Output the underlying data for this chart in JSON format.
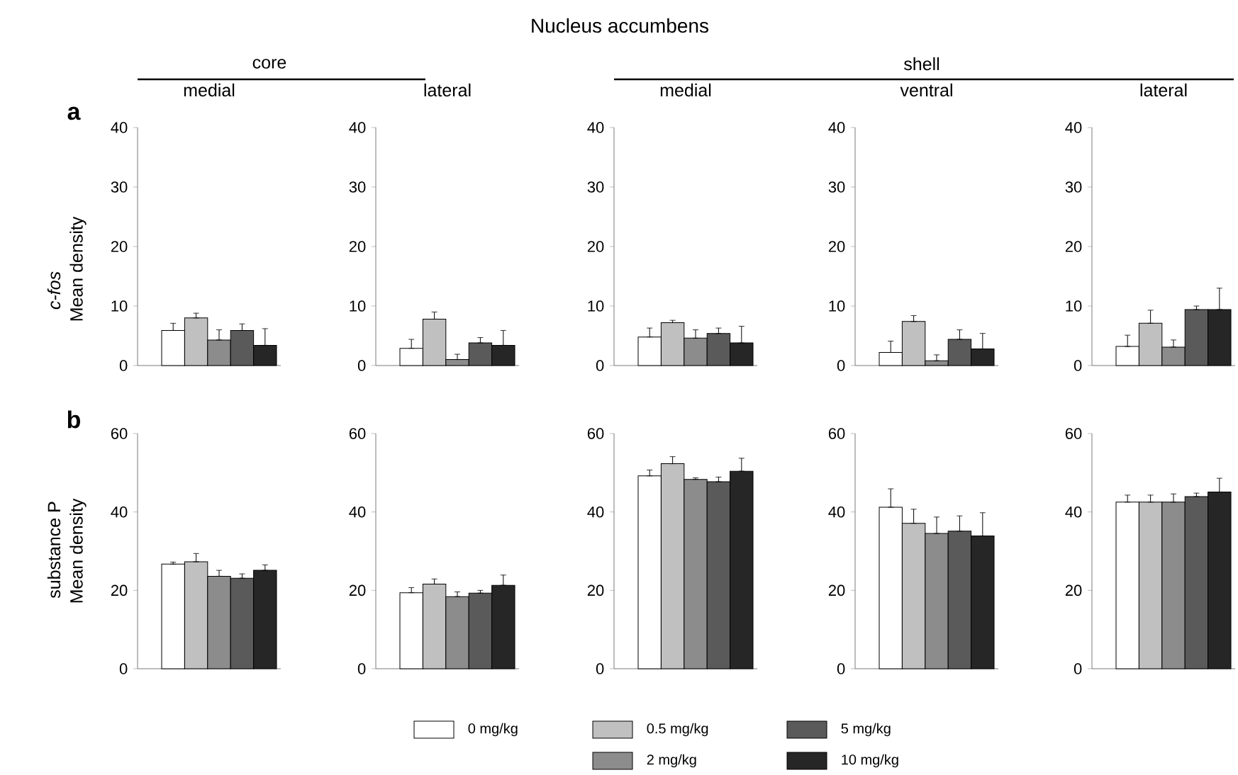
{
  "chart_data": [
    {
      "type": "bar",
      "title": "medial",
      "ylabel": "Mean density",
      "annotations": [
        "Nucleus accumbens",
        "core",
        "a",
        "c-fos"
      ],
      "categories": [
        null
      ],
      "ylim": [
        0,
        40
      ],
      "yticks": [
        0,
        10,
        20,
        30,
        40
      ],
      "legend": "bottom",
      "series": [
        {
          "name": "0 mg/kg",
          "color": "#ffffff",
          "values": [
            5.9
          ],
          "errors": [
            [
              5.9,
              7.1
            ]
          ]
        },
        {
          "name": "0.5 mg/kg",
          "color": "#c0c0c0",
          "values": [
            8.0
          ],
          "errors": [
            [
              8.0,
              8.8
            ]
          ]
        },
        {
          "name": "2 mg/kg",
          "color": "#8c8c8c",
          "values": [
            4.3
          ],
          "errors": [
            [
              4.3,
              6.0
            ]
          ]
        },
        {
          "name": "5 mg/kg",
          "color": "#5a5a5a",
          "values": [
            5.9
          ],
          "errors": [
            [
              5.9,
              7.0
            ]
          ]
        },
        {
          "name": "10 mg/kg",
          "color": "#262626",
          "values": [
            3.4
          ],
          "errors": [
            [
              3.4,
              6.2
            ]
          ]
        }
      ]
    },
    {
      "type": "bar",
      "title": "lateral",
      "categories": [
        null
      ],
      "ylim": [
        0,
        40
      ],
      "yticks": [
        0,
        10,
        20,
        30,
        40
      ],
      "series": [
        {
          "color": "#ffffff",
          "values": [
            2.9
          ],
          "errors": [
            [
              2.9,
              4.4
            ]
          ]
        },
        {
          "color": "#c0c0c0",
          "values": [
            7.8
          ],
          "errors": [
            [
              7.8,
              9.0
            ]
          ]
        },
        {
          "color": "#8c8c8c",
          "values": [
            1.0
          ],
          "errors": [
            [
              1.0,
              1.9
            ]
          ]
        },
        {
          "color": "#5a5a5a",
          "values": [
            3.8
          ],
          "errors": [
            [
              3.8,
              4.7
            ]
          ]
        },
        {
          "color": "#262626",
          "values": [
            3.4
          ],
          "errors": [
            [
              3.4,
              5.9
            ]
          ]
        }
      ]
    },
    {
      "type": "bar",
      "title": "medial",
      "annotations": [
        "shell"
      ],
      "categories": [
        null
      ],
      "ylim": [
        0,
        40
      ],
      "yticks": [
        0,
        10,
        20,
        30,
        40
      ],
      "series": [
        {
          "color": "#ffffff",
          "values": [
            4.8
          ],
          "errors": [
            [
              4.8,
              6.3
            ]
          ]
        },
        {
          "color": "#c0c0c0",
          "values": [
            7.2
          ],
          "errors": [
            [
              7.2,
              7.6
            ]
          ]
        },
        {
          "color": "#8c8c8c",
          "values": [
            4.6
          ],
          "errors": [
            [
              4.6,
              6.0
            ]
          ]
        },
        {
          "color": "#5a5a5a",
          "values": [
            5.4
          ],
          "errors": [
            [
              5.4,
              6.3
            ]
          ]
        },
        {
          "color": "#262626",
          "values": [
            3.8
          ],
          "errors": [
            [
              3.8,
              6.6
            ]
          ]
        }
      ]
    },
    {
      "type": "bar",
      "title": "ventral",
      "categories": [
        null
      ],
      "ylim": [
        0,
        40
      ],
      "yticks": [
        0,
        10,
        20,
        30,
        40
      ],
      "series": [
        {
          "color": "#ffffff",
          "values": [
            2.2
          ],
          "errors": [
            [
              2.2,
              4.1
            ]
          ]
        },
        {
          "color": "#c0c0c0",
          "values": [
            7.4
          ],
          "errors": [
            [
              7.4,
              8.4
            ]
          ]
        },
        {
          "color": "#8c8c8c",
          "values": [
            0.8
          ],
          "errors": [
            [
              0.8,
              1.8
            ]
          ]
        },
        {
          "color": "#5a5a5a",
          "values": [
            4.4
          ],
          "errors": [
            [
              4.4,
              6.0
            ]
          ]
        },
        {
          "color": "#262626",
          "values": [
            2.8
          ],
          "errors": [
            [
              2.8,
              5.4
            ]
          ]
        }
      ]
    },
    {
      "type": "bar",
      "title": "lateral",
      "categories": [
        null
      ],
      "ylim": [
        0,
        40
      ],
      "yticks": [
        0,
        10,
        20,
        30,
        40
      ],
      "series": [
        {
          "color": "#ffffff",
          "values": [
            3.2
          ],
          "errors": [
            [
              3.2,
              5.1
            ]
          ]
        },
        {
          "color": "#c0c0c0",
          "values": [
            7.1
          ],
          "errors": [
            [
              7.1,
              9.3
            ]
          ]
        },
        {
          "color": "#8c8c8c",
          "values": [
            3.1
          ],
          "errors": [
            [
              3.1,
              4.3
            ]
          ]
        },
        {
          "color": "#5a5a5a",
          "values": [
            9.4
          ],
          "errors": [
            [
              9.4,
              10.0
            ]
          ]
        },
        {
          "color": "#262626",
          "values": [
            9.4
          ],
          "errors": [
            [
              9.4,
              13.0
            ]
          ]
        }
      ]
    },
    {
      "type": "bar",
      "ylabel": "Mean density",
      "annotations": [
        "b",
        "substance P"
      ],
      "categories": [
        null
      ],
      "ylim": [
        0,
        60
      ],
      "yticks": [
        0,
        20,
        40,
        60
      ],
      "series": [
        {
          "color": "#ffffff",
          "values": [
            26.7
          ],
          "errors": [
            [
              26.7,
              27.2
            ]
          ]
        },
        {
          "color": "#c0c0c0",
          "values": [
            27.3
          ],
          "errors": [
            [
              27.3,
              29.4
            ]
          ]
        },
        {
          "color": "#8c8c8c",
          "values": [
            23.6
          ],
          "errors": [
            [
              23.6,
              25.1
            ]
          ]
        },
        {
          "color": "#5a5a5a",
          "values": [
            23.1
          ],
          "errors": [
            [
              23.1,
              24.2
            ]
          ]
        },
        {
          "color": "#262626",
          "values": [
            25.1
          ],
          "errors": [
            [
              25.1,
              26.5
            ]
          ]
        }
      ]
    },
    {
      "type": "bar",
      "categories": [
        null
      ],
      "ylim": [
        0,
        60
      ],
      "yticks": [
        0,
        20,
        40,
        60
      ],
      "series": [
        {
          "color": "#ffffff",
          "values": [
            19.4
          ],
          "errors": [
            [
              19.4,
              20.7
            ]
          ]
        },
        {
          "color": "#c0c0c0",
          "values": [
            21.6
          ],
          "errors": [
            [
              21.6,
              22.9
            ]
          ]
        },
        {
          "color": "#8c8c8c",
          "values": [
            18.4
          ],
          "errors": [
            [
              18.4,
              19.6
            ]
          ]
        },
        {
          "color": "#5a5a5a",
          "values": [
            19.3
          ],
          "errors": [
            [
              19.3,
              20.0
            ]
          ]
        },
        {
          "color": "#262626",
          "values": [
            21.3
          ],
          "errors": [
            [
              21.3,
              23.9
            ]
          ]
        }
      ]
    },
    {
      "type": "bar",
      "categories": [
        null
      ],
      "ylim": [
        0,
        60
      ],
      "yticks": [
        0,
        20,
        40,
        60
      ],
      "series": [
        {
          "color": "#ffffff",
          "values": [
            49.2
          ],
          "errors": [
            [
              49.2,
              50.7
            ]
          ]
        },
        {
          "color": "#c0c0c0",
          "values": [
            52.3
          ],
          "errors": [
            [
              52.3,
              54.1
            ]
          ]
        },
        {
          "color": "#8c8c8c",
          "values": [
            48.3
          ],
          "errors": [
            [
              48.3,
              48.7
            ]
          ]
        },
        {
          "color": "#5a5a5a",
          "values": [
            47.7
          ],
          "errors": [
            [
              47.7,
              48.9
            ]
          ]
        },
        {
          "color": "#262626",
          "values": [
            50.4
          ],
          "errors": [
            [
              50.4,
              53.7
            ]
          ]
        }
      ]
    },
    {
      "type": "bar",
      "categories": [
        null
      ],
      "ylim": [
        0,
        60
      ],
      "yticks": [
        0,
        20,
        40,
        60
      ],
      "series": [
        {
          "color": "#ffffff",
          "values": [
            41.2
          ],
          "errors": [
            [
              41.2,
              45.9
            ]
          ]
        },
        {
          "color": "#c0c0c0",
          "values": [
            37.1
          ],
          "errors": [
            [
              37.1,
              40.7
            ]
          ]
        },
        {
          "color": "#8c8c8c",
          "values": [
            34.5
          ],
          "errors": [
            [
              34.5,
              38.7
            ]
          ]
        },
        {
          "color": "#5a5a5a",
          "values": [
            35.1
          ],
          "errors": [
            [
              35.1,
              39.0
            ]
          ]
        },
        {
          "color": "#262626",
          "values": [
            33.9
          ],
          "errors": [
            [
              33.9,
              39.8
            ]
          ]
        }
      ]
    },
    {
      "type": "bar",
      "categories": [
        null
      ],
      "ylim": [
        0,
        60
      ],
      "yticks": [
        0,
        20,
        40,
        60
      ],
      "series": [
        {
          "color": "#ffffff",
          "values": [
            42.5
          ],
          "errors": [
            [
              42.5,
              44.3
            ]
          ]
        },
        {
          "color": "#c0c0c0",
          "values": [
            42.5
          ],
          "errors": [
            [
              42.5,
              44.3
            ]
          ]
        },
        {
          "color": "#8c8c8c",
          "values": [
            42.5
          ],
          "errors": [
            [
              42.5,
              44.6
            ]
          ]
        },
        {
          "color": "#5a5a5a",
          "values": [
            43.9
          ],
          "errors": [
            [
              43.9,
              44.8
            ]
          ]
        },
        {
          "color": "#262626",
          "values": [
            45.1
          ],
          "errors": [
            [
              45.1,
              48.6
            ]
          ]
        }
      ]
    }
  ]
}
